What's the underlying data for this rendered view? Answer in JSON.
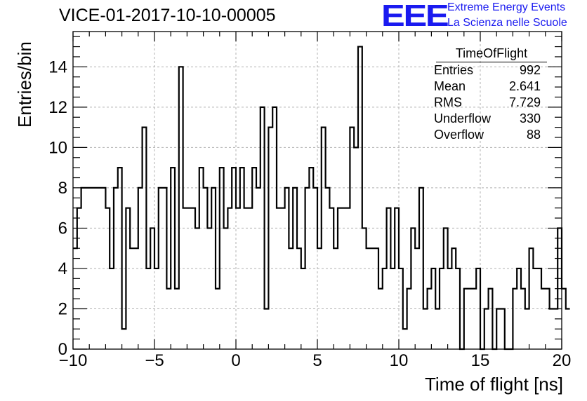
{
  "title": "VICE-01-2017-10-10-00005",
  "logo": {
    "letters": "EEE",
    "line1": "Extreme Energy Events",
    "line2": "La Scienza nelle Scuole",
    "color": "#1a1af0"
  },
  "stats": {
    "name": "TimeOfFlight",
    "rows": [
      {
        "label": "Entries",
        "value": "992"
      },
      {
        "label": "Mean",
        "value": "2.641"
      },
      {
        "label": "RMS",
        "value": "7.729"
      },
      {
        "label": "Underflow",
        "value": "330"
      },
      {
        "label": "Overflow",
        "value": "88"
      }
    ]
  },
  "chart_data": {
    "type": "bar",
    "style": "step-histogram",
    "title": "VICE-01-2017-10-10-00005",
    "xlabel": "Time of flight [ns]",
    "ylabel": "Entries/bin",
    "xlim": [
      -10,
      20
    ],
    "ylim": [
      0,
      15.75
    ],
    "bin_width": 0.25,
    "grid": true,
    "legend": "none",
    "xticks": [
      -10,
      -5,
      0,
      5,
      10,
      15,
      20
    ],
    "xtick_labels": [
      "−10",
      "−5",
      "0",
      "5",
      "10",
      "15",
      "20"
    ],
    "yticks": [
      0,
      2,
      4,
      6,
      8,
      10,
      12,
      14
    ],
    "ytick_labels": [
      "0",
      "2",
      "4",
      "6",
      "8",
      "10",
      "12",
      "14"
    ],
    "values": [
      5,
      7,
      8,
      8,
      8,
      8,
      8,
      8,
      7,
      4,
      8,
      9,
      1,
      7,
      5,
      5,
      8,
      11,
      4,
      6,
      4,
      8,
      8,
      3,
      9,
      3,
      14,
      7,
      7,
      7,
      6,
      9,
      8,
      6,
      8,
      3,
      9,
      6,
      7,
      9,
      7,
      9,
      7,
      7,
      9,
      8,
      12,
      2,
      11,
      12,
      7,
      7,
      8,
      5,
      8,
      5,
      4,
      8,
      9,
      8,
      5,
      11,
      8,
      7,
      5,
      7,
      7,
      7,
      11,
      10,
      15,
      6,
      5,
      5,
      5,
      3,
      4,
      7,
      4,
      7,
      4,
      1,
      3,
      6,
      5,
      8,
      2,
      3,
      4,
      2,
      4,
      6,
      4,
      5,
      4,
      0,
      3,
      3,
      3,
      4,
      0,
      2,
      3,
      0,
      2,
      2,
      0,
      0,
      3,
      4,
      3,
      2,
      5,
      4,
      4,
      3,
      3,
      2,
      2,
      6,
      3,
      2
    ]
  }
}
